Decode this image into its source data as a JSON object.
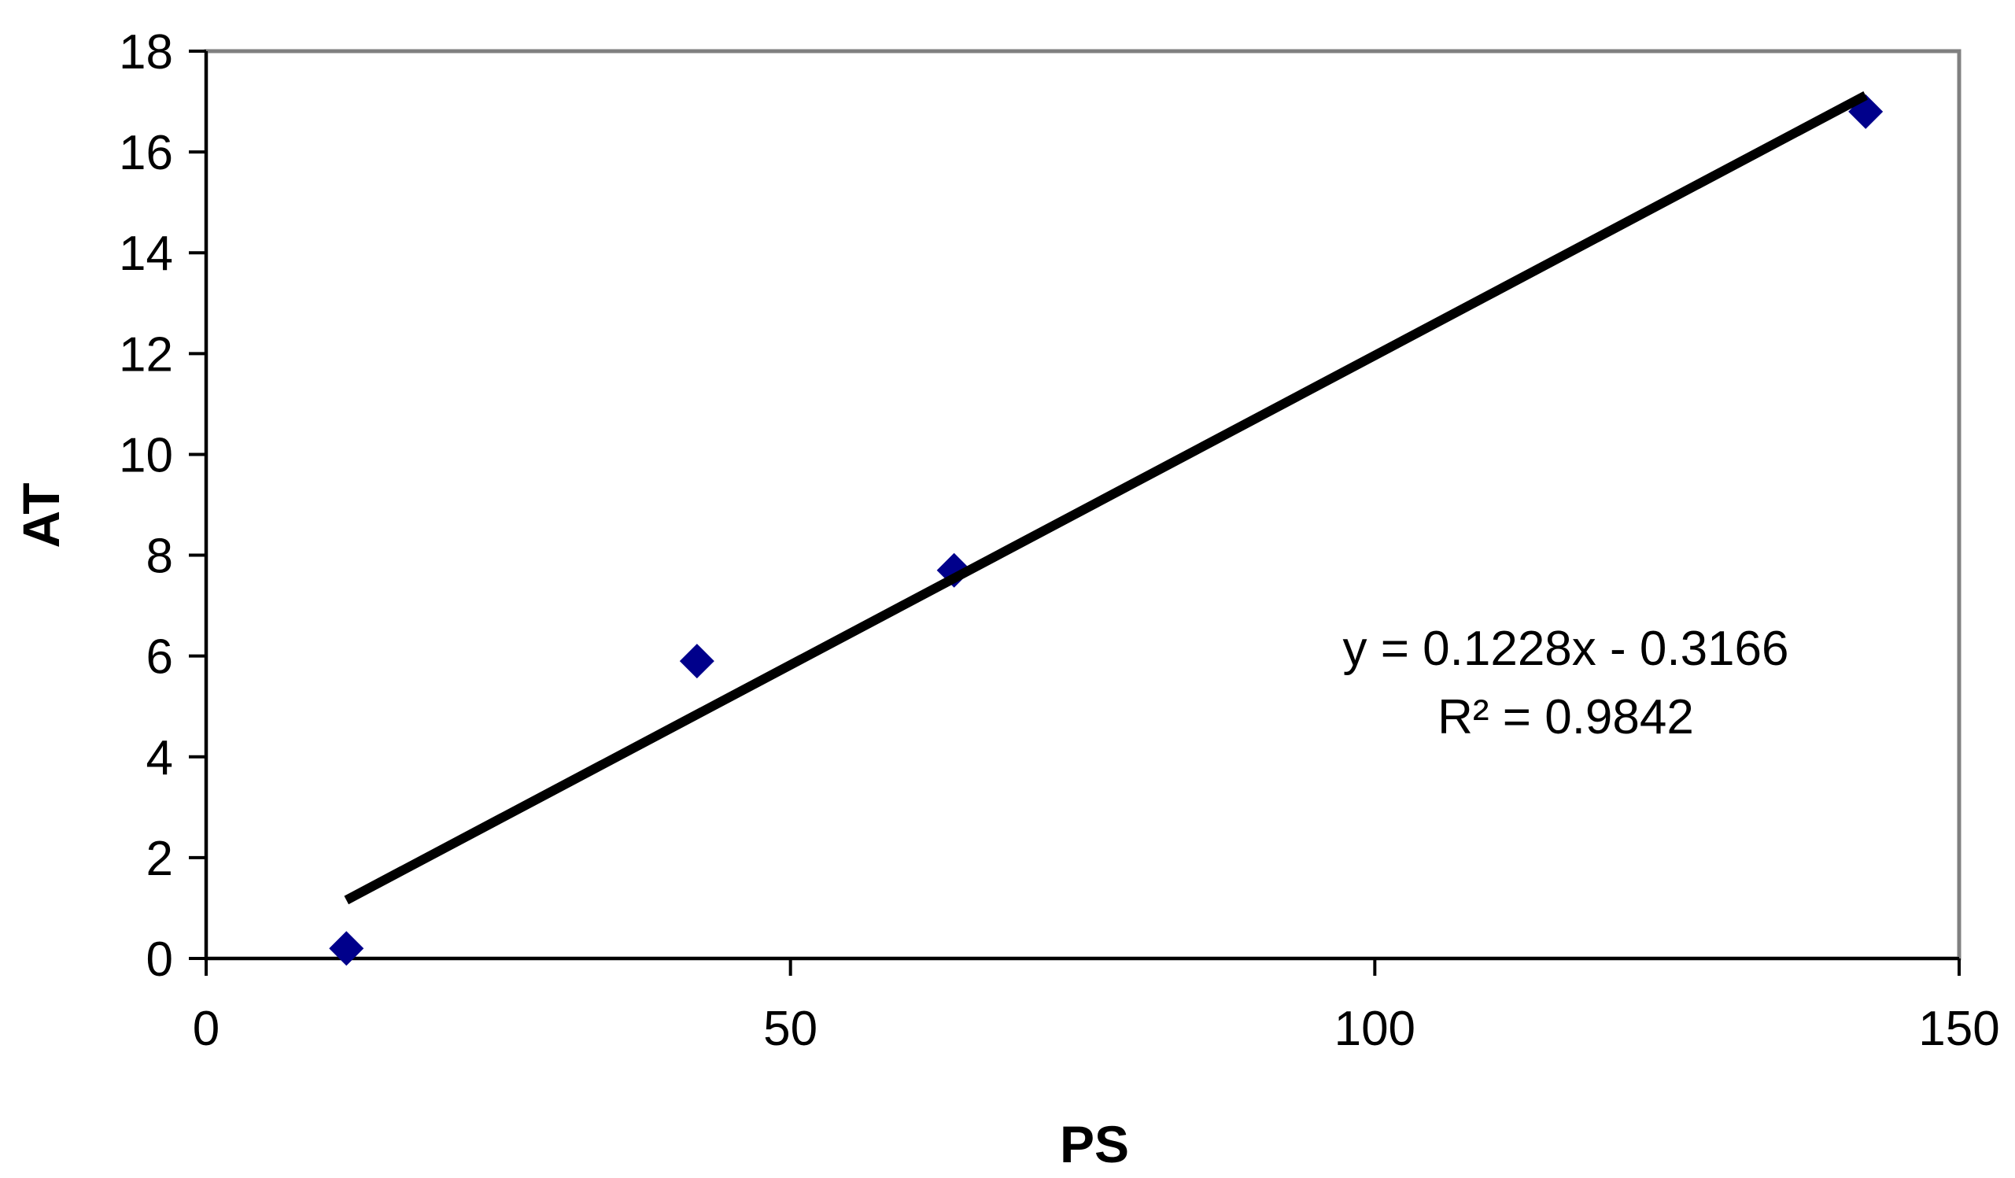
{
  "chart_data": {
    "type": "scatter",
    "title": "",
    "xlabel": "PS",
    "ylabel": "AT",
    "xlim": [
      0,
      150
    ],
    "ylim": [
      0,
      18
    ],
    "x_ticks": [
      0,
      50,
      100,
      150
    ],
    "y_ticks": [
      0,
      2,
      4,
      6,
      8,
      10,
      12,
      14,
      16,
      18
    ],
    "grid": false,
    "legend": "none",
    "series": [
      {
        "points": [
          {
            "x": 12,
            "y": 0.2
          },
          {
            "x": 42,
            "y": 5.9
          },
          {
            "x": 64,
            "y": 7.7
          },
          {
            "x": 142,
            "y": 16.8
          }
        ],
        "marker": "diamond",
        "color": "#00008B"
      }
    ],
    "trendline": {
      "slope": 0.1228,
      "intercept": -0.3166,
      "x_range": [
        12,
        142
      ],
      "color": "#000000"
    },
    "annotations": {
      "equation": "y = 0.1228x  - 0.3166",
      "r_squared": "R² = 0.9842"
    },
    "colors": {
      "plot_border": "#808080",
      "axis": "#000000"
    }
  }
}
